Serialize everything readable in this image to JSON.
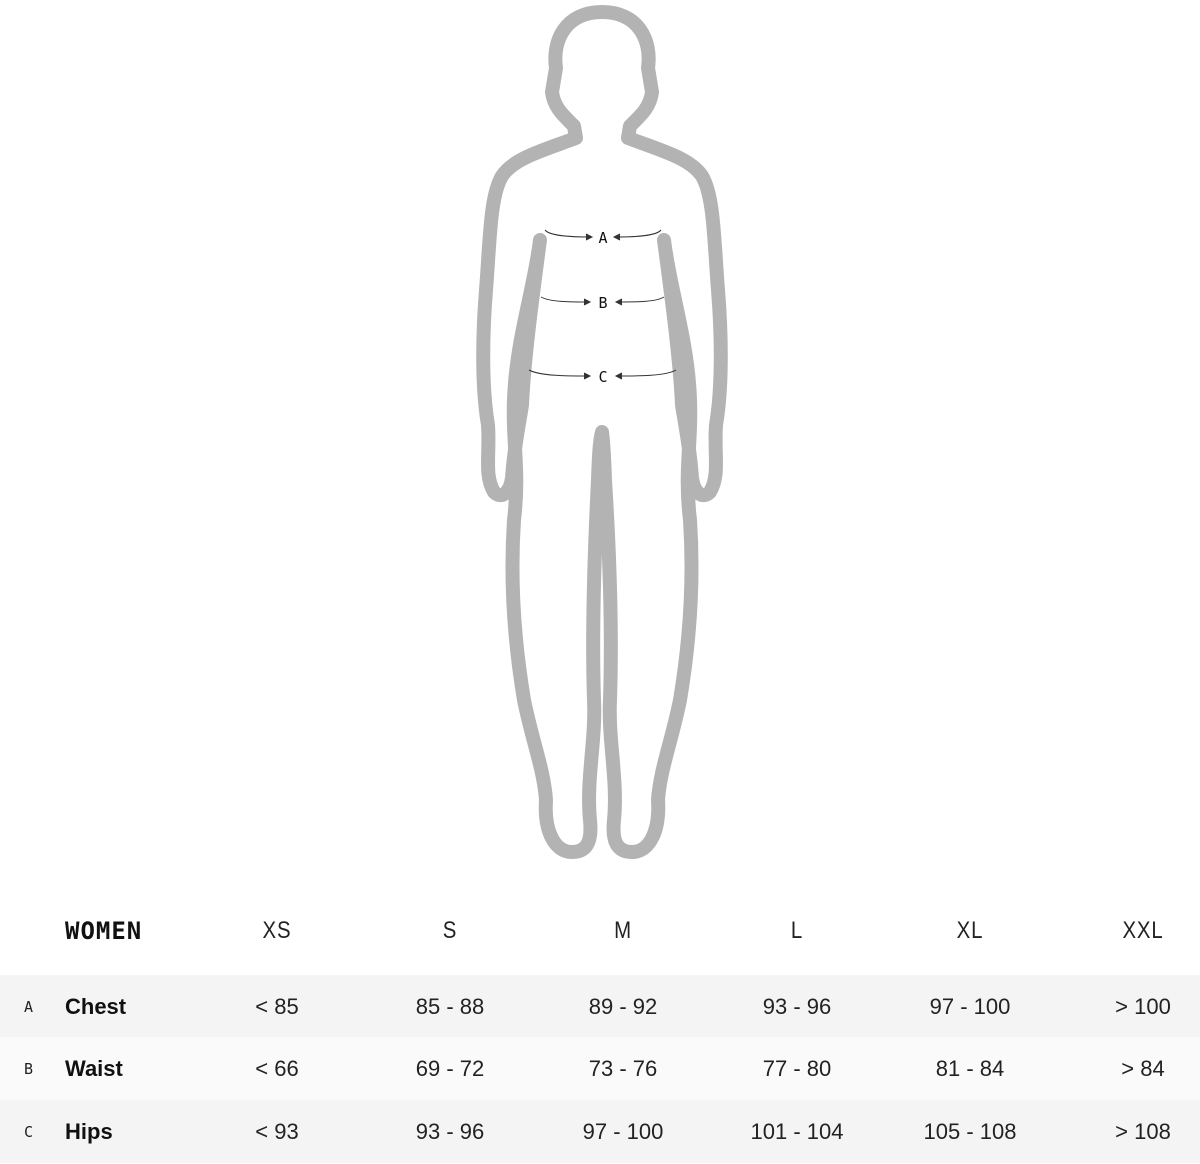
{
  "figure": {
    "outline_color": "#b3b3b3",
    "markers": [
      "A",
      "B",
      "C"
    ]
  },
  "table": {
    "title": "WOMEN",
    "sizes": [
      "XS",
      "S",
      "M",
      "L",
      "XL",
      "XXL"
    ],
    "rows": [
      {
        "letter": "A",
        "name": "Chest",
        "values": [
          "< 85",
          "85 - 88",
          "89 - 92",
          "93 - 96",
          "97 - 100",
          "> 100"
        ],
        "background": "#f4f4f4"
      },
      {
        "letter": "B",
        "name": "Waist",
        "values": [
          "< 66",
          "69 - 72",
          "73 - 76",
          "77 - 80",
          "81 - 84",
          "> 84"
        ],
        "background": "#fafafa"
      },
      {
        "letter": "C",
        "name": "Hips",
        "values": [
          "< 93",
          "93 - 96",
          "97 - 100",
          "101 - 104",
          "105 - 108",
          "> 108"
        ],
        "background": "#f4f4f4"
      }
    ]
  }
}
